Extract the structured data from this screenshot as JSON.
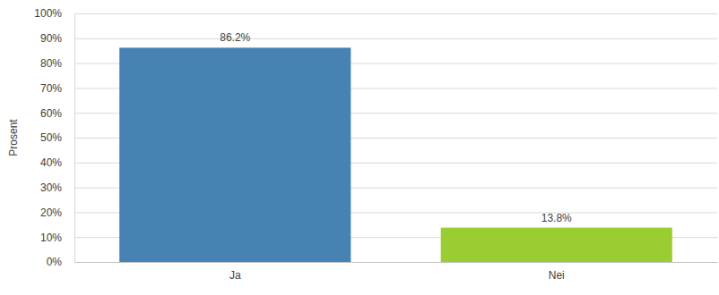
{
  "chart_data": {
    "type": "bar",
    "y_label": "Prosent",
    "categories": [
      "Ja",
      "Nei"
    ],
    "values": [
      86.2,
      13.8
    ],
    "value_labels": [
      "86.2%",
      "13.8%"
    ],
    "colors": [
      "#4682b4",
      "#9acd32"
    ],
    "ylim": [
      0,
      100
    ],
    "yticks": [
      {
        "value": 0,
        "label": "0%"
      },
      {
        "value": 10,
        "label": "10%"
      },
      {
        "value": 20,
        "label": "20%"
      },
      {
        "value": 30,
        "label": "30%"
      },
      {
        "value": 40,
        "label": "40%"
      },
      {
        "value": 50,
        "label": "50%"
      },
      {
        "value": 60,
        "label": "60%"
      },
      {
        "value": 70,
        "label": "70%"
      },
      {
        "value": 80,
        "label": "80%"
      },
      {
        "value": 90,
        "label": "90%"
      },
      {
        "value": 100,
        "label": "100%"
      }
    ],
    "grid": true,
    "data_labels": true
  }
}
